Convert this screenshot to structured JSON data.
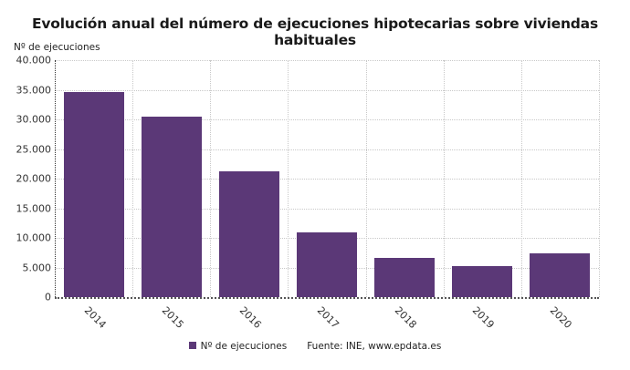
{
  "chart_data": {
    "type": "bar",
    "title": "Evolución anual del número de ejecuciones hipotecarias sobre viviendas habituales",
    "xlabel": "",
    "ylabel": "Nº de ejecuciones",
    "categories": [
      "2014",
      "2015",
      "2016",
      "2017",
      "2018",
      "2019",
      "2020"
    ],
    "series": [
      {
        "name": "Nº de ejecuciones",
        "color": "#5b3877",
        "values": [
          34680,
          30460,
          21230,
          10920,
          6620,
          5230,
          7380
        ]
      }
    ],
    "ylim": [
      0,
      40000
    ],
    "yticks": [
      "0",
      "5.000",
      "10.000",
      "15.000",
      "20.000",
      "25.000",
      "30.000",
      "35.000",
      "40.000"
    ],
    "ytick_values": [
      0,
      5000,
      10000,
      15000,
      20000,
      25000,
      30000,
      35000,
      40000
    ],
    "grid": true,
    "legend_position": "bottom",
    "source": "Fuente: INE, www.epdata.es"
  },
  "legend": {
    "label": "Nº de ejecuciones",
    "source": "Fuente: INE, www.epdata.es"
  }
}
